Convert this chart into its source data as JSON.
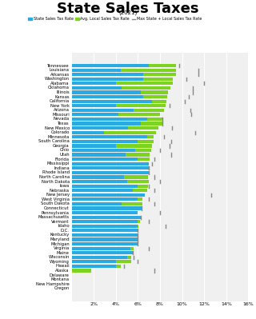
{
  "title": "State Sales Taxes",
  "subtitle": "(2021)",
  "legend": [
    "State Sales Tax Rate",
    "Avg. Local Sales Tax Rate",
    "Max State + Local Sales Tax Rate"
  ],
  "colors": {
    "state": "#29ABE2",
    "local": "#7ED321",
    "max_marker": "#888888"
  },
  "states": [
    "Tennessee",
    "Louisiana",
    "Arkansas",
    "Washington",
    "Alabama",
    "Oklahoma",
    "Illinois",
    "Kansas",
    "California",
    "New York",
    "Arizona",
    "Missouri",
    "Nevada",
    "Texas",
    "New Mexico",
    "Colorado",
    "Minnesota",
    "South Carolina",
    "Georgia",
    "Ohio",
    "Utah",
    "Florida",
    "Mississippi",
    "Indiana",
    "Rhode Island",
    "North Carolina",
    "North Dakota",
    "Iowa",
    "Nebraska",
    "New Jersey",
    "West Virginia",
    "South Dakota",
    "Connecticut",
    "Pennsylvania",
    "Massachusetts",
    "Vermont",
    "Idaho",
    "D.C.",
    "Kentucky",
    "Maryland",
    "Michigan",
    "Virginia",
    "Maine",
    "Wisconsin",
    "Wyoming",
    "Hawaii",
    "Alaska",
    "Delaware",
    "Montana",
    "New Hampshire",
    "Oregon"
  ],
  "state_rate": [
    7.0,
    4.45,
    6.5,
    6.5,
    4.0,
    4.5,
    6.25,
    6.5,
    7.25,
    4.0,
    5.6,
    4.225,
    6.85,
    6.25,
    5.125,
    2.9,
    6.875,
    6.0,
    4.0,
    5.75,
    4.85,
    6.0,
    7.0,
    7.0,
    7.0,
    4.75,
    5.0,
    6.0,
    5.5,
    6.625,
    6.0,
    4.5,
    6.35,
    6.0,
    6.25,
    6.0,
    6.0,
    6.0,
    6.0,
    6.0,
    6.0,
    5.3,
    5.5,
    5.0,
    4.0,
    4.0,
    0.0,
    0.0,
    0.0,
    0.0,
    0.0
  ],
  "local_rate": [
    2.47,
    5.0,
    2.93,
    2.67,
    5.14,
    4.42,
    2.49,
    2.17,
    1.31,
    4.52,
    2.77,
    3.78,
    1.38,
    1.94,
    2.72,
    4.75,
    0.58,
    1.43,
    3.29,
    1.43,
    2.24,
    1.05,
    0.0,
    0.0,
    0.0,
    2.17,
    1.96,
    0.94,
    1.36,
    0.0,
    0.39,
    1.9,
    0.0,
    0.0,
    0.0,
    0.18,
    0.02,
    0.0,
    0.0,
    0.0,
    0.0,
    0.33,
    0.0,
    0.42,
    1.36,
    0.44,
    1.76,
    0.0,
    0.0,
    0.0,
    0.0
  ],
  "max_rate": [
    9.75,
    11.45,
    11.5,
    10.4,
    12.0,
    11.0,
    11.0,
    10.6,
    10.25,
    8.875,
    10.725,
    10.85,
    8.23,
    8.25,
    9.0625,
    11.2,
    8.375,
    9.0,
    8.9,
    8.0,
    9.05,
    7.5,
    7.25,
    7.0,
    7.0,
    7.5,
    8.0,
    7.0,
    7.5,
    12.625,
    7.0,
    7.5,
    6.35,
    8.0,
    6.25,
    7.0,
    8.5,
    6.0,
    6.0,
    6.0,
    6.0,
    7.0,
    5.5,
    5.6,
    6.0,
    4.712,
    7.5,
    0.0,
    0.0,
    0.0,
    0.0
  ],
  "background": "#ffffff",
  "plot_bg": "#f0f0f0"
}
